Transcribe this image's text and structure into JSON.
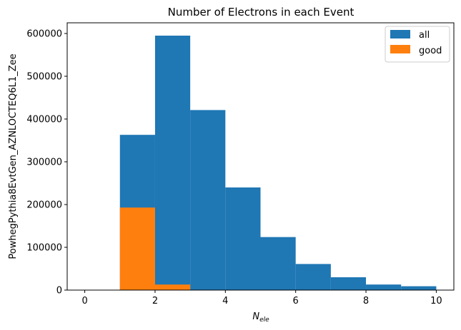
{
  "chart_data": {
    "type": "bar",
    "title": "Number of Electrons in each Event",
    "xlabel_main": "N",
    "xlabel_sub": "ele",
    "ylabel": "PowhegPythia8EvtGen_AZNLOCTEQ6L1_Zee",
    "xlim": [
      -0.5,
      10.5
    ],
    "ylim": [
      0,
      625000
    ],
    "x_ticks": [
      0,
      2,
      4,
      6,
      8,
      10
    ],
    "y_ticks": [
      0,
      100000,
      200000,
      300000,
      400000,
      500000,
      600000
    ],
    "bin_edges": [
      1,
      2,
      3,
      4,
      5,
      6,
      7,
      8,
      9,
      10
    ],
    "series": [
      {
        "name": "all",
        "color": "#1f77b4",
        "values": [
          363000,
          595000,
          421000,
          240000,
          124000,
          61000,
          30000,
          13000,
          9000
        ]
      },
      {
        "name": "good",
        "color": "#ff7f0e",
        "values": [
          193000,
          13000,
          0,
          0,
          0,
          0,
          0,
          0,
          0
        ]
      }
    ],
    "legend_position": "top-right",
    "grid": false
  }
}
